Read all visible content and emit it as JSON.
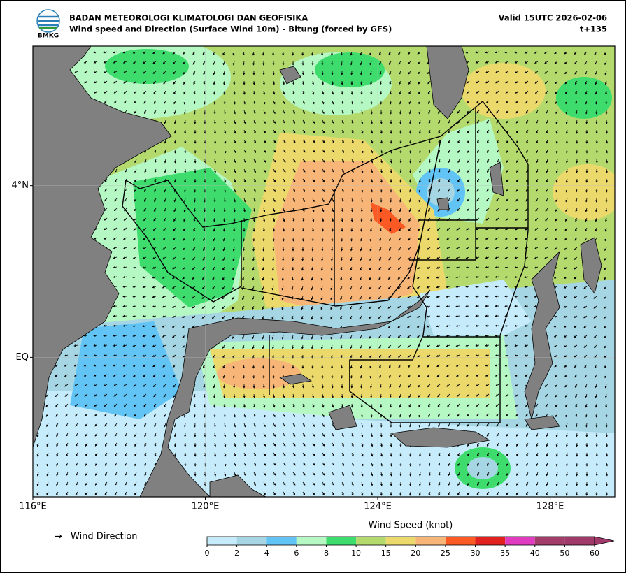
{
  "header": {
    "title": "BADAN METEOROLOGI KLIMATOLOGI DAN GEOFISIKA",
    "subtitle": "Wind speed and Direction (Surface Wind 10m) - Bitung (forced by GFS)",
    "valid": "Valid 15UTC 2026-02-06",
    "lead": "t+135",
    "logo_text": "BMKG"
  },
  "map": {
    "xlim": [
      116,
      129.5
    ],
    "ylim": [
      -3.25,
      7.25
    ],
    "xticks": [
      {
        "value": 116,
        "label": "116°E"
      },
      {
        "value": 120,
        "label": "120°E"
      },
      {
        "value": 124,
        "label": "124°E"
      },
      {
        "value": 128,
        "label": "128°E"
      }
    ],
    "yticks": [
      {
        "value": 4,
        "label": "4°N"
      },
      {
        "value": 0,
        "label": "EQ"
      }
    ],
    "grid": true
  },
  "legend": {
    "arrow": "→",
    "label": "Wind Direction"
  },
  "colorbar": {
    "title": "Wind Speed (knot)",
    "ticks": [
      0,
      2,
      4,
      6,
      8,
      10,
      15,
      20,
      25,
      30,
      35,
      40,
      50,
      60
    ],
    "colors": [
      "#c6ecfb",
      "#a6d6e4",
      "#62c4f5",
      "#b5f8c4",
      "#3ddc6d",
      "#b4da6e",
      "#ecd96b",
      "#f7b678",
      "#fb5a24",
      "#e12020",
      "#e03cc0",
      "#a23d6a",
      "#a03a6a"
    ]
  }
}
